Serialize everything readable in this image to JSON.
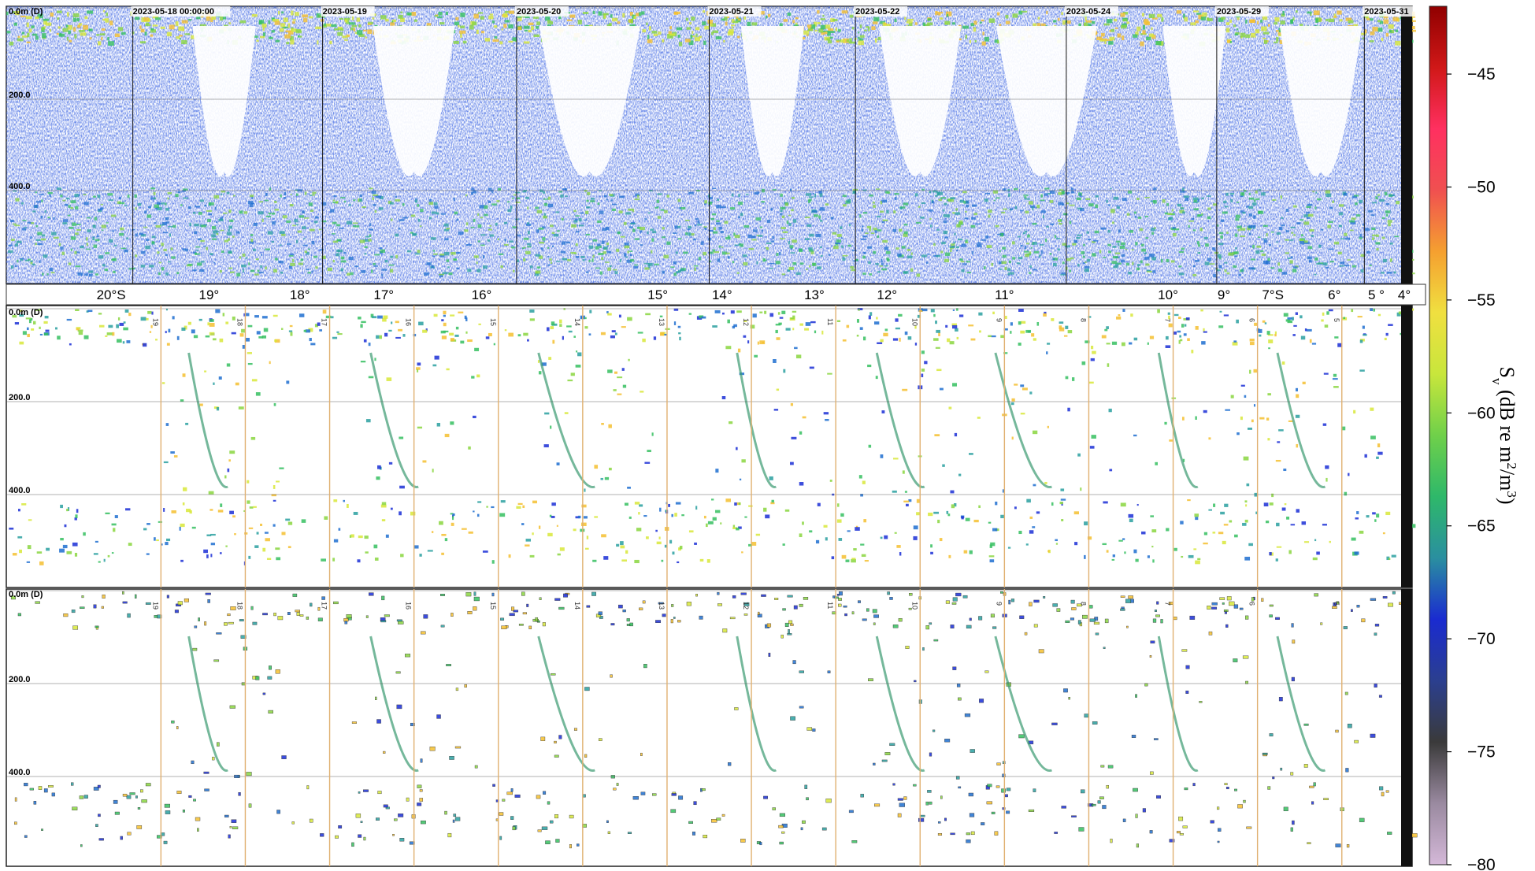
{
  "chart_data": {
    "type": "heatmap",
    "description_free": true,
    "panels": [
      {
        "id": "top",
        "depth_labels": [
          "0.0m (D)",
          "200.0",
          "400.0"
        ],
        "depth_values": [
          0,
          200,
          400
        ],
        "date_labels": [
          "2023-05-18 00:00:00",
          "2023-05-19",
          "2023-05-20",
          "2023-05-21",
          "2023-05-22",
          "2023-05-24",
          "2023-05-29",
          "2023-05-31"
        ],
        "date_positions_fraction": [
          0.09,
          0.225,
          0.363,
          0.5,
          0.604,
          0.754,
          0.861,
          0.966
        ]
      },
      {
        "id": "middle",
        "depth_labels": [
          "0.0m (D)",
          "200.0",
          "400.0"
        ],
        "depth_values": [
          0,
          200,
          400
        ],
        "latitude_tick_labels": [
          "19",
          "18",
          "17",
          "16",
          "15",
          "14",
          "13",
          "12",
          "11",
          "10",
          "9",
          "8",
          "7",
          "6",
          "5"
        ]
      },
      {
        "id": "bottom",
        "depth_labels": [
          "0.0m (D)",
          "200.0",
          "400.0"
        ],
        "depth_values": [
          0,
          200,
          400
        ],
        "latitude_tick_labels": [
          "19",
          "18",
          "17",
          "16",
          "15",
          "14",
          "13",
          "12",
          "11",
          "10",
          "9",
          "8",
          "7",
          "6",
          "5"
        ]
      }
    ],
    "latitude_strip": {
      "labels": [
        "20°S",
        "19°",
        "18°",
        "17°",
        "16°",
        "15°",
        "14°",
        "13°",
        "12°",
        "11°",
        "10°",
        "9°",
        "7°S",
        "6°",
        "5 °",
        "4°"
      ],
      "positions_fraction": [
        0.075,
        0.145,
        0.21,
        0.27,
        0.34,
        0.466,
        0.512,
        0.578,
        0.63,
        0.714,
        0.831,
        0.871,
        0.906,
        0.95,
        0.98,
        1.0
      ]
    },
    "colorbar": {
      "label_main": "S",
      "label_sub": "v",
      "label_rest": " (dB re m",
      "label_sup1": "2",
      "label_mid": "/m",
      "label_sup2": "3",
      "label_end": ")",
      "ticks": [
        -45,
        -50,
        -55,
        -60,
        -65,
        -70,
        -75,
        -80
      ],
      "range": [
        -80,
        -42
      ],
      "colors": [
        "#d4b8d8",
        "#9a8aa0",
        "#3a3a3a",
        "#2b3f8f",
        "#1a2bd0",
        "#2a8fa0",
        "#2eb86a",
        "#6fd04a",
        "#c8e63c",
        "#f0e040",
        "#f5a030",
        "#f05050",
        "#ff3060",
        "#d01818",
        "#900000"
      ]
    }
  }
}
